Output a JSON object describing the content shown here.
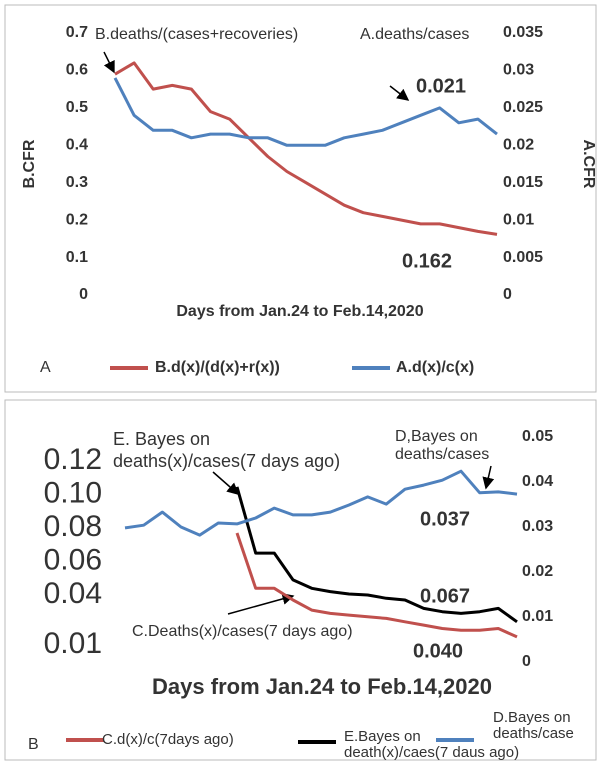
{
  "chart_data": [
    {
      "type": "line",
      "panel_label": "A",
      "x_label": "Days from Jan.24 to Feb.14,2020",
      "y_label": "B.CFR",
      "y2_label": "A.CFR",
      "ylim": [
        0,
        0.7
      ],
      "yticks": [
        0,
        0.1,
        0.2,
        0.3,
        0.4,
        0.5,
        0.6,
        0.7
      ],
      "y2lim": [
        0,
        0.035
      ],
      "y2ticks": [
        0,
        0.005,
        0.01,
        0.015,
        0.02,
        0.025,
        0.03,
        0.035
      ],
      "series": [
        {
          "name": "B.d(x)/(d(x)+r(x))",
          "color": "#c0504d",
          "values": [
            0.59,
            0.62,
            0.55,
            0.56,
            0.55,
            0.49,
            0.47,
            0.42,
            0.37,
            0.33,
            0.3,
            0.27,
            0.24,
            0.22,
            0.21,
            0.2,
            0.19,
            0.19,
            0.18,
            0.17,
            0.162
          ]
        },
        {
          "name": "A.d(x)/c(x)",
          "color": "#4f81bd",
          "axis": "y2",
          "values": [
            0.029,
            0.024,
            0.022,
            0.022,
            0.021,
            0.0215,
            0.0215,
            0.021,
            0.021,
            0.02,
            0.02,
            0.02,
            0.021,
            0.0215,
            0.022,
            0.023,
            0.024,
            0.025,
            0.023,
            0.0235,
            0.0215
          ]
        }
      ],
      "annotations": [
        "B.deaths/(cases+recoveries)",
        "A.deaths/cases",
        "0.021",
        "0.162"
      ]
    },
    {
      "type": "line",
      "panel_label": "B",
      "x_label": "Days from Jan.24 to Feb.14,2020",
      "ylim": [
        0,
        0.125
      ],
      "yticks": [
        0.01,
        0.04,
        0.06,
        0.08,
        {
          "value": 0.1,
          "label": "0.10"
        },
        0.12
      ],
      "y2lim": [
        0,
        0.05
      ],
      "y2ticks": [
        0,
        0.01,
        0.02,
        0.03,
        0.04,
        0.05
      ],
      "series": [
        {
          "name": "C.d(x)/c(7days ago)",
          "color": "#c0504d",
          "values": [
            null,
            null,
            null,
            null,
            null,
            null,
            0.077,
            0.044,
            0.044,
            0.037,
            0.031,
            0.029,
            0.028,
            0.027,
            0.026,
            0.024,
            0.022,
            0.02,
            0.019,
            0.019,
            0.02,
            0.015
          ]
        },
        {
          "name": [
            "E.Bayes on",
            "death(x)/caes(7 daus ago)"
          ],
          "color": "#000000",
          "values": [
            null,
            null,
            null,
            null,
            null,
            null,
            0.1045,
            0.065,
            0.065,
            0.049,
            0.044,
            0.042,
            0.0406,
            0.04,
            0.038,
            0.037,
            0.032,
            0.03,
            0.029,
            0.03,
            0.032,
            0.024
          ]
        },
        {
          "name": [
            "D.Bayes on",
            "deaths/case"
          ],
          "color": "#4f81bd",
          "axis": "y2",
          "values": [
            0.0298,
            0.0304,
            0.0333,
            0.03,
            0.0282,
            0.0309,
            0.0307,
            0.032,
            0.0342,
            0.0327,
            0.0327,
            0.0333,
            0.0349,
            0.0367,
            0.0351,
            0.0384,
            0.0393,
            0.0404,
            0.0424,
            0.0376,
            0.0378,
            0.0373
          ]
        }
      ],
      "annotations": [
        [
          "E. Bayes on",
          "deaths(x)/cases(7 days ago)"
        ],
        [
          "D,Bayes on",
          "deaths/cases"
        ],
        "C.Deaths(x)/cases(7 days ago)",
        "0.037",
        "0.067",
        "0.040"
      ]
    }
  ]
}
